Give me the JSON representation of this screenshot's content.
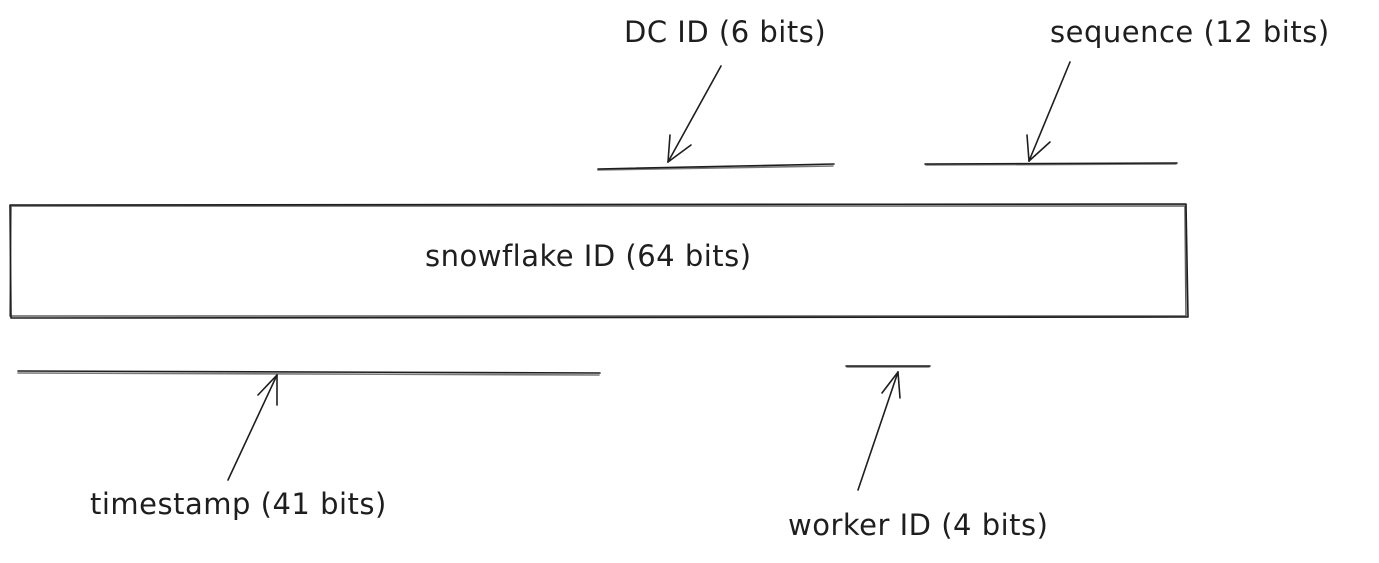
{
  "diagram": {
    "main_box_label": "snowflake ID (64 bits)",
    "labels": {
      "dc_id": "DC ID (6 bits)",
      "sequence": "sequence (12 bits)",
      "timestamp": "timestamp (41 bits)",
      "worker_id": "worker ID (4 bits)"
    }
  }
}
